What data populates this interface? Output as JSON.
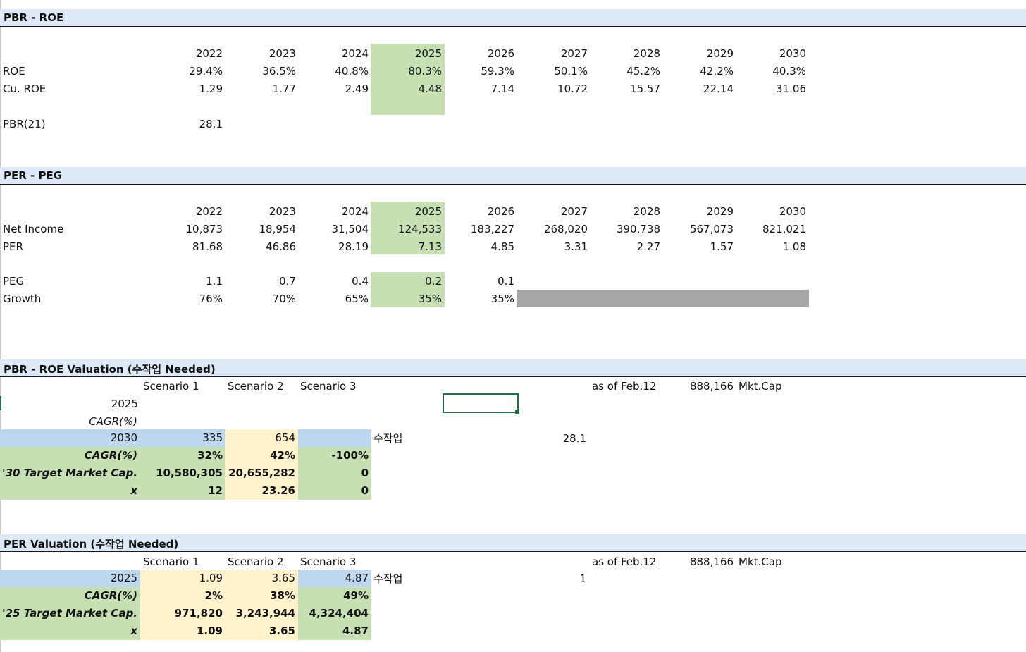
{
  "pbr_roe": {
    "title": "PBR - ROE",
    "years": [
      "2022",
      "2023",
      "2024",
      "2025",
      "2026",
      "2027",
      "2028",
      "2029",
      "2030"
    ],
    "roe_label": "ROE",
    "roe": [
      "29.4%",
      "36.5%",
      "40.8%",
      "80.3%",
      "59.3%",
      "50.1%",
      "45.2%",
      "42.2%",
      "40.3%"
    ],
    "cu_roe_label": "Cu. ROE",
    "cu_roe": [
      "1.29",
      "1.77",
      "2.49",
      "4.48",
      "7.14",
      "10.72",
      "15.57",
      "22.14",
      "31.06"
    ],
    "pbr_label": "PBR(21)",
    "pbr_value": "28.1"
  },
  "per_peg": {
    "title": "PER - PEG",
    "years": [
      "2022",
      "2023",
      "2024",
      "2025",
      "2026",
      "2027",
      "2028",
      "2029",
      "2030"
    ],
    "net_income_label": "Net Income",
    "net_income": [
      "10,873",
      "18,954",
      "31,504",
      "124,533",
      "183,227",
      "268,020",
      "390,738",
      "567,073",
      "821,021"
    ],
    "per_label": "PER",
    "per": [
      "81.68",
      "46.86",
      "28.19",
      "7.13",
      "4.85",
      "3.31",
      "2.27",
      "1.57",
      "1.08"
    ],
    "peg_label": "PEG",
    "peg": [
      "1.1",
      "0.7",
      "0.4",
      "0.2",
      "0.1"
    ],
    "growth_label": "Growth",
    "growth": [
      "76%",
      "70%",
      "65%",
      "35%",
      "35%"
    ]
  },
  "pbr_val": {
    "title": "PBR - ROE Valuation (수작업 Needed)",
    "scenarios": [
      "Scenario 1",
      "Scenario 2",
      "Scenario 3"
    ],
    "as_of": "as of Feb.12",
    "mkt_cap_value": "888,166",
    "mkt_cap_label": "Mkt.Cap",
    "year_2025": "2025",
    "cagr_label_top": "CAGR(%)",
    "row_2030_label": "2030",
    "row_2030": [
      "335",
      "654",
      ""
    ],
    "manual_label": "수작업",
    "manual_value": "28.1",
    "cagr_label": "CAGR(%)",
    "cagr": [
      "32%",
      "42%",
      "-100%"
    ],
    "target_label": "'30 Target Market Cap.",
    "target": [
      "10,580,305",
      "20,655,282",
      "0"
    ],
    "x_label": "x",
    "x": [
      "12",
      "23.26",
      "0"
    ]
  },
  "per_val": {
    "title": "PER Valuation (수작업 Needed)",
    "scenarios": [
      "Scenario 1",
      "Scenario 2",
      "Scenario 3"
    ],
    "as_of": "as of Feb.12",
    "mkt_cap_value": "888,166",
    "mkt_cap_label": "Mkt.Cap",
    "row_2025_label": "2025",
    "row_2025": [
      "1.09",
      "3.65",
      "4.87"
    ],
    "manual_label": "수작업",
    "manual_value": "1",
    "cagr_label": "CAGR(%)",
    "cagr": [
      "2%",
      "38%",
      "49%"
    ],
    "target_label": "'25 Target Market Cap.",
    "target": [
      "971,820",
      "3,243,944",
      "4,324,404"
    ],
    "x_label": "x",
    "x": [
      "1.09",
      "3.65",
      "4.87"
    ]
  }
}
